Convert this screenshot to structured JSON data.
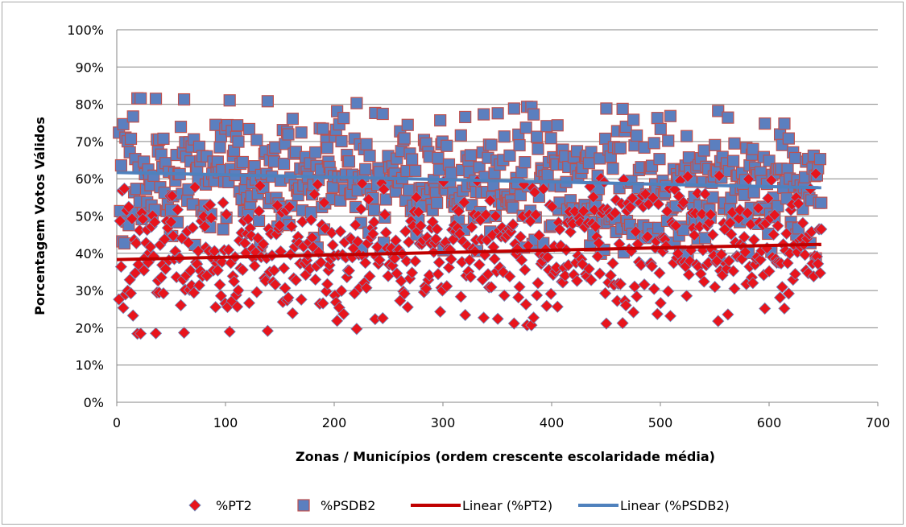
{
  "chart_data": {
    "type": "scatter",
    "xlabel": "Zonas / Municípios (ordem crescente escolaridade média)",
    "ylabel": "Porcentagem Votos Válidos",
    "xlim": [
      0,
      700
    ],
    "ylim": [
      0,
      100
    ],
    "x_ticks": [
      "0",
      "100",
      "200",
      "300",
      "400",
      "500",
      "600",
      "700"
    ],
    "y_ticks": [
      "0%",
      "10%",
      "20%",
      "30%",
      "40%",
      "50%",
      "60%",
      "70%",
      "80%",
      "90%",
      "100%"
    ],
    "grid": "horizontal",
    "legend_position": "bottom",
    "n_points": 648,
    "series": [
      {
        "name": "%PT2",
        "kind": "scatter",
        "marker": "diamond",
        "color": "#e8141c",
        "edge": "#6f8fc2"
      },
      {
        "name": "%PSDB2",
        "kind": "scatter",
        "marker": "square",
        "color": "#5b7fbf",
        "edge": "#c0504d"
      },
      {
        "name": "Linear (%PT2)",
        "kind": "trendline",
        "color": "#c00000",
        "x": [
          0,
          648
        ],
        "y": [
          38.3,
          42.4
        ]
      },
      {
        "name": "Linear (%PSDB2)",
        "kind": "trendline",
        "color": "#4f81bd",
        "x": [
          0,
          648
        ],
        "y": [
          61.7,
          57.6
        ]
      }
    ]
  }
}
